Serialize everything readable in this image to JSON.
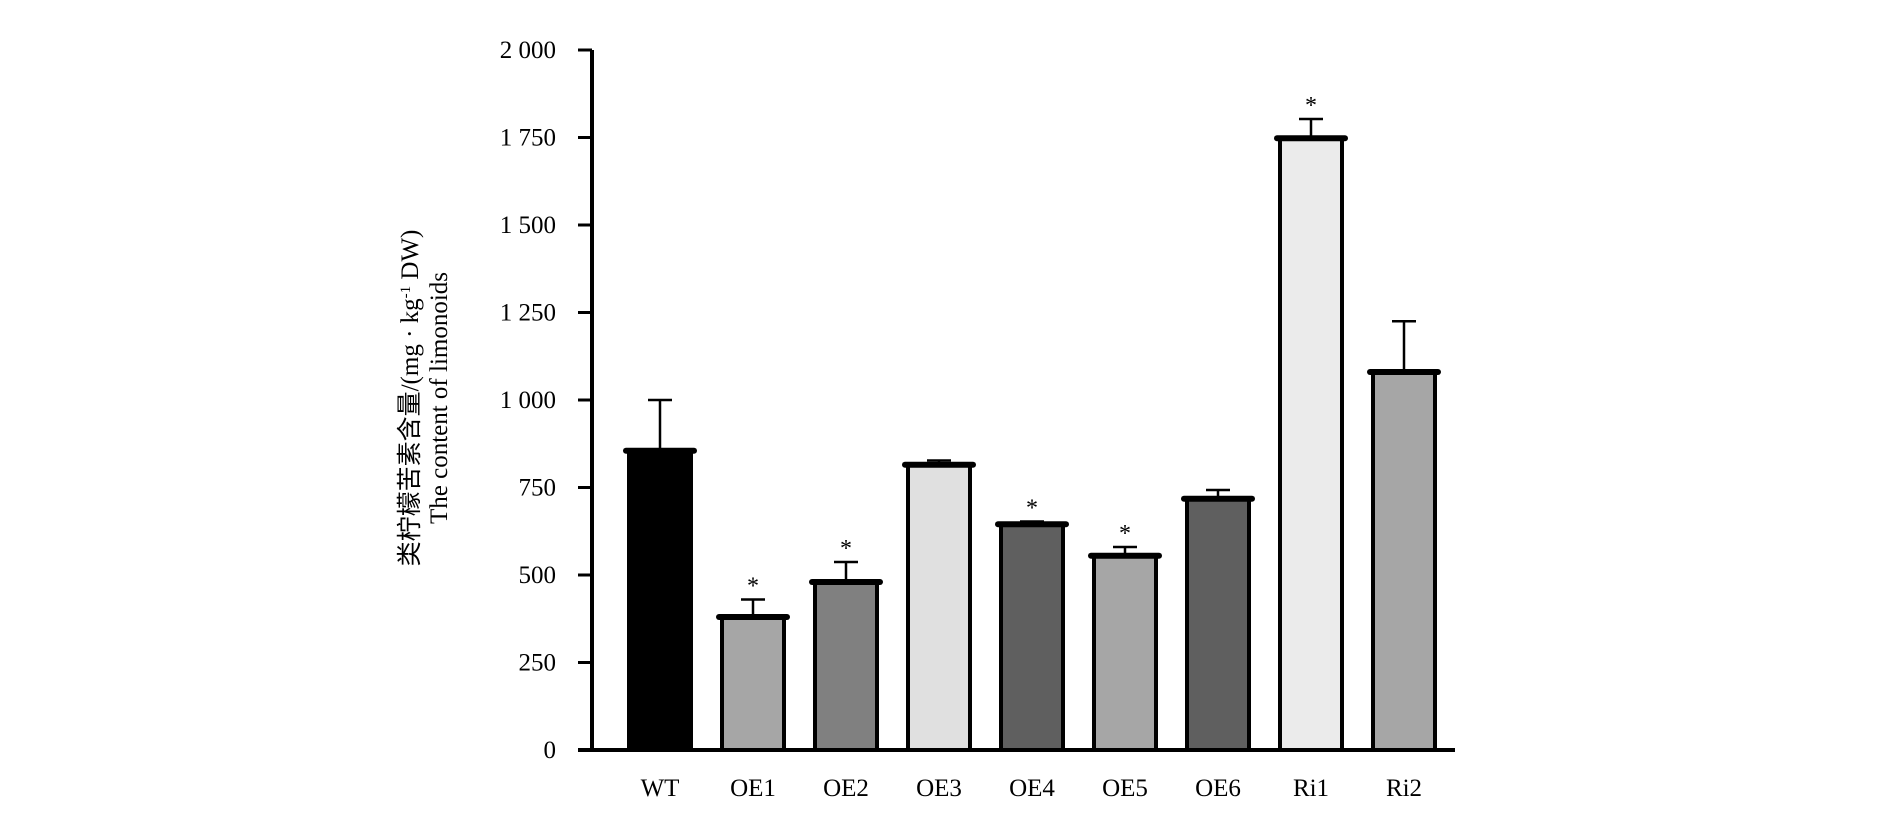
{
  "chart_data": {
    "type": "bar",
    "categories": [
      "WT",
      "OE1",
      "OE2",
      "OE3",
      "OE4",
      "OE5",
      "OE6",
      "Ri1",
      "Ri2"
    ],
    "values": [
      855,
      380,
      480,
      815,
      645,
      555,
      718,
      1748,
      1080
    ],
    "errors": [
      145,
      50,
      57,
      12,
      8,
      25,
      25,
      55,
      145
    ],
    "significance": [
      "",
      "*",
      "*",
      "",
      "*",
      "*",
      "",
      "*",
      ""
    ],
    "colors": [
      "#000000",
      "#a6a6a6",
      "#808080",
      "#e0e0e0",
      "#5f5f5f",
      "#a6a6a6",
      "#5f5f5f",
      "#ebebeb",
      "#a6a6a6"
    ],
    "ylim": [
      0,
      2000
    ],
    "yticks": [
      0,
      250,
      500,
      750,
      1000,
      1250,
      1500,
      1750,
      2000
    ],
    "ytick_labels": [
      "0",
      "250",
      "500",
      "750",
      "1 000",
      "1 250",
      "1 500",
      "1 750",
      "2 000"
    ],
    "ylabel_zh_prefix": "类柠檬苦素含量/(mg · kg",
    "ylabel_zh_sup": "-1",
    "ylabel_zh_suffix": " DW)",
    "ylabel_en": "The content of limonoids",
    "title": "",
    "xlabel": "",
    "grid": false
  }
}
